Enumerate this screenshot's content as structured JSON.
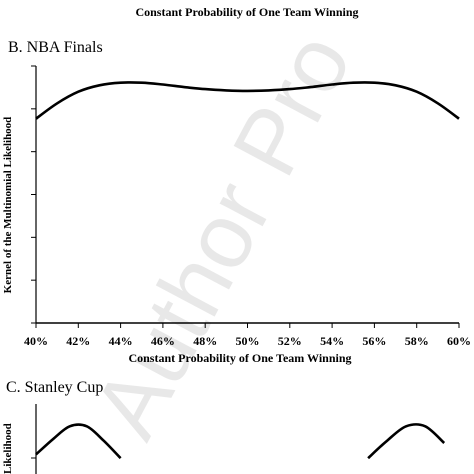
{
  "top_axis_title": "Constant Probability of One Team Winning",
  "watermark": "Author Pro",
  "chart_data": [
    {
      "type": "line",
      "panel_label": "B.  NBA Finals",
      "xlabel": "Constant Probability of One Team Winning",
      "ylabel": "Kernel of the Multinomial Likelihood",
      "categories": [
        "40%",
        "42%",
        "44%",
        "46%",
        "48%",
        "50%",
        "52%",
        "54%",
        "56%",
        "58%",
        "60%"
      ],
      "x_range": [
        40,
        60
      ],
      "y_range": [
        0,
        1
      ],
      "y_ticks_labeled": false,
      "grid": false,
      "series": [
        {
          "x": [
            40,
            41,
            42,
            43,
            44,
            45,
            46,
            47,
            48,
            49,
            50,
            51,
            52,
            53,
            54,
            55,
            56,
            57,
            58,
            59,
            60
          ],
          "y": [
            0.795,
            0.855,
            0.9,
            0.925,
            0.935,
            0.935,
            0.928,
            0.918,
            0.91,
            0.905,
            0.903,
            0.905,
            0.91,
            0.918,
            0.928,
            0.935,
            0.935,
            0.925,
            0.9,
            0.855,
            0.795
          ]
        }
      ]
    },
    {
      "type": "line",
      "panel_label": "C.  Stanley Cup",
      "ylabel": "Likelihood",
      "x_range": [
        40,
        60
      ],
      "series": [
        {
          "x": [
            40,
            40.8,
            41.6,
            42.4,
            43.2,
            44,
            55.7,
            56.6,
            57.5,
            58.4,
            59.3
          ],
          "y": [
            0.6,
            0.8,
            0.97,
            0.97,
            0.78,
            0.55,
            0.55,
            0.78,
            0.97,
            0.97,
            0.75
          ]
        }
      ]
    }
  ]
}
